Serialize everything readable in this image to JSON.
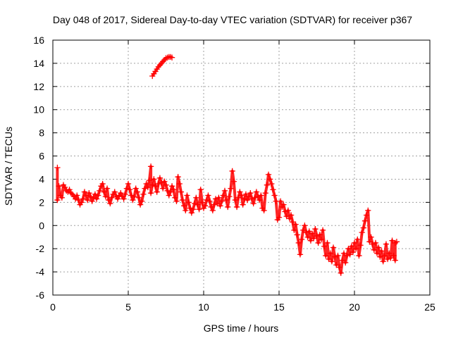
{
  "chart_data": {
    "type": "scatter",
    "title": "Day 048 of 2017, Sidereal Day-to-day VTEC variation (SDTVAR) for receiver p367",
    "xlabel": "GPS time / hours",
    "ylabel": "SDTVAR / TECUs",
    "xlim": [
      0,
      25
    ],
    "ylim": [
      -6,
      16
    ],
    "xticks": [
      "0",
      "5",
      "10",
      "15",
      "20",
      "25"
    ],
    "yticks": [
      "-6",
      "-4",
      "-2",
      "0",
      "2",
      "4",
      "6",
      "8",
      "10",
      "12",
      "14",
      "16"
    ],
    "grid": true,
    "marker": "+",
    "color": "#ff0000",
    "series": [
      {
        "name": "SDTVAR",
        "points": [
          [
            0.3,
            5.0
          ],
          [
            0.3,
            2.2
          ],
          [
            0.4,
            3.4
          ],
          [
            0.5,
            2.6
          ],
          [
            0.6,
            2.4
          ],
          [
            0.7,
            3.5
          ],
          [
            0.8,
            3.3
          ],
          [
            0.9,
            3.0
          ],
          [
            1.0,
            2.9
          ],
          [
            1.1,
            3.1
          ],
          [
            1.2,
            2.8
          ],
          [
            1.3,
            2.7
          ],
          [
            1.4,
            2.5
          ],
          [
            1.5,
            2.3
          ],
          [
            1.6,
            2.6
          ],
          [
            1.7,
            2.2
          ],
          [
            1.8,
            1.8
          ],
          [
            1.9,
            2.0
          ],
          [
            2.0,
            2.3
          ],
          [
            2.1,
            2.9
          ],
          [
            2.2,
            2.6
          ],
          [
            2.3,
            2.2
          ],
          [
            2.4,
            2.8
          ],
          [
            2.5,
            2.5
          ],
          [
            2.6,
            2.1
          ],
          [
            2.7,
            2.4
          ],
          [
            2.8,
            2.7
          ],
          [
            2.9,
            2.3
          ],
          [
            3.0,
            2.6
          ],
          [
            3.1,
            3.0
          ],
          [
            3.2,
            3.4
          ],
          [
            3.3,
            3.6
          ],
          [
            3.4,
            2.9
          ],
          [
            3.5,
            2.5
          ],
          [
            3.6,
            3.2
          ],
          [
            3.7,
            2.2
          ],
          [
            3.8,
            1.9
          ],
          [
            3.9,
            2.4
          ],
          [
            4.0,
            2.7
          ],
          [
            4.1,
            2.9
          ],
          [
            4.2,
            2.5
          ],
          [
            4.3,
            2.3
          ],
          [
            4.4,
            2.6
          ],
          [
            4.5,
            2.8
          ],
          [
            4.6,
            2.5
          ],
          [
            4.7,
            2.3
          ],
          [
            4.8,
            2.7
          ],
          [
            4.9,
            3.2
          ],
          [
            5.0,
            3.6
          ],
          [
            5.1,
            3.1
          ],
          [
            5.2,
            2.6
          ],
          [
            5.3,
            2.2
          ],
          [
            5.4,
            2.5
          ],
          [
            5.5,
            3.2
          ],
          [
            5.6,
            2.9
          ],
          [
            5.7,
            2.4
          ],
          [
            5.8,
            1.8
          ],
          [
            5.9,
            2.1
          ],
          [
            6.0,
            2.7
          ],
          [
            6.1,
            3.2
          ],
          [
            6.2,
            3.6
          ],
          [
            6.3,
            3.3
          ],
          [
            6.4,
            3.9
          ],
          [
            6.5,
            5.1
          ],
          [
            6.5,
            2.8
          ],
          [
            6.6,
            3.5
          ],
          [
            6.7,
            4.0
          ],
          [
            6.8,
            3.4
          ],
          [
            6.9,
            2.9
          ],
          [
            7.0,
            3.6
          ],
          [
            7.1,
            4.1
          ],
          [
            7.2,
            3.7
          ],
          [
            7.3,
            3.2
          ],
          [
            7.4,
            3.8
          ],
          [
            7.5,
            3.5
          ],
          [
            7.6,
            3.0
          ],
          [
            7.7,
            2.6
          ],
          [
            7.8,
            2.9
          ],
          [
            7.9,
            3.4
          ],
          [
            8.0,
            3.1
          ],
          [
            8.1,
            2.4
          ],
          [
            8.2,
            2.1
          ],
          [
            8.3,
            4.2
          ],
          [
            8.4,
            3.6
          ],
          [
            8.5,
            2.9
          ],
          [
            8.6,
            2.2
          ],
          [
            8.7,
            1.7
          ],
          [
            8.8,
            1.3
          ],
          [
            8.9,
            2.6
          ],
          [
            9.0,
            2.0
          ],
          [
            9.1,
            1.5
          ],
          [
            9.2,
            1.1
          ],
          [
            9.3,
            1.4
          ],
          [
            9.4,
            1.9
          ],
          [
            9.5,
            2.4
          ],
          [
            9.6,
            1.8
          ],
          [
            9.7,
            1.4
          ],
          [
            9.8,
            3.1
          ],
          [
            9.9,
            2.0
          ],
          [
            10.0,
            1.5
          ],
          [
            10.1,
            1.7
          ],
          [
            10.2,
            2.2
          ],
          [
            10.3,
            2.6
          ],
          [
            10.4,
            2.1
          ],
          [
            10.5,
            1.6
          ],
          [
            10.6,
            1.3
          ],
          [
            10.7,
            1.8
          ],
          [
            10.8,
            2.3
          ],
          [
            10.9,
            1.9
          ],
          [
            11.0,
            2.4
          ],
          [
            11.1,
            1.7
          ],
          [
            11.2,
            2.1
          ],
          [
            11.3,
            2.6
          ],
          [
            11.4,
            3.0
          ],
          [
            11.5,
            2.2
          ],
          [
            11.6,
            1.6
          ],
          [
            11.7,
            2.5
          ],
          [
            11.8,
            3.2
          ],
          [
            11.9,
            4.7
          ],
          [
            12.0,
            3.8
          ],
          [
            12.1,
            2.2
          ],
          [
            12.2,
            1.6
          ],
          [
            12.3,
            2.4
          ],
          [
            12.4,
            2.9
          ],
          [
            12.5,
            2.6
          ],
          [
            12.6,
            1.8
          ],
          [
            12.7,
            2.3
          ],
          [
            12.8,
            2.7
          ],
          [
            12.9,
            2.2
          ],
          [
            13.0,
            2.5
          ],
          [
            13.1,
            2.8
          ],
          [
            13.2,
            2.3
          ],
          [
            13.3,
            1.9
          ],
          [
            13.4,
            2.4
          ],
          [
            13.5,
            2.9
          ],
          [
            13.6,
            2.5
          ],
          [
            13.7,
            2.2
          ],
          [
            13.8,
            2.6
          ],
          [
            13.9,
            1.5
          ],
          [
            14.0,
            1.3
          ],
          [
            14.1,
            2.8
          ],
          [
            14.2,
            3.5
          ],
          [
            14.3,
            4.4
          ],
          [
            14.4,
            4.0
          ],
          [
            14.5,
            3.6
          ],
          [
            14.6,
            3.1
          ],
          [
            14.7,
            2.6
          ],
          [
            14.8,
            2.1
          ],
          [
            14.9,
            0.5
          ],
          [
            15.0,
            0.7
          ],
          [
            15.1,
            2.1
          ],
          [
            15.2,
            1.6
          ],
          [
            15.3,
            1.8
          ],
          [
            15.4,
            1.2
          ],
          [
            15.5,
            0.8
          ],
          [
            15.6,
            1.3
          ],
          [
            15.7,
            0.6
          ],
          [
            15.8,
            0.9
          ],
          [
            15.9,
            0.3
          ],
          [
            16.0,
            -0.4
          ],
          [
            16.1,
            0.1
          ],
          [
            16.2,
            -0.8
          ],
          [
            16.3,
            -1.5
          ],
          [
            16.4,
            -2.5
          ],
          [
            16.5,
            -1.2
          ],
          [
            16.6,
            -0.4
          ],
          [
            16.7,
            0.0
          ],
          [
            16.8,
            -0.6
          ],
          [
            16.9,
            -1.0
          ],
          [
            17.0,
            -0.5
          ],
          [
            17.1,
            -1.3
          ],
          [
            17.2,
            -0.7
          ],
          [
            17.3,
            -1.1
          ],
          [
            17.4,
            -0.3
          ],
          [
            17.5,
            -0.9
          ],
          [
            17.6,
            -1.5
          ],
          [
            17.7,
            -0.8
          ],
          [
            17.8,
            -1.2
          ],
          [
            17.9,
            -0.4
          ],
          [
            18.0,
            -1.8
          ],
          [
            18.1,
            -2.6
          ],
          [
            18.2,
            -1.5
          ],
          [
            18.3,
            -2.9
          ],
          [
            18.4,
            -2.4
          ],
          [
            18.5,
            -3.1
          ],
          [
            18.6,
            -1.9
          ],
          [
            18.7,
            -2.7
          ],
          [
            18.8,
            -3.4
          ],
          [
            18.9,
            -2.6
          ],
          [
            19.0,
            -3.6
          ],
          [
            19.1,
            -4.1
          ],
          [
            19.2,
            -3.0
          ],
          [
            19.3,
            -2.4
          ],
          [
            19.4,
            -3.2
          ],
          [
            19.5,
            -2.6
          ],
          [
            19.6,
            -2.0
          ],
          [
            19.7,
            -2.5
          ],
          [
            19.8,
            -1.8
          ],
          [
            19.9,
            -2.3
          ],
          [
            20.0,
            -1.5
          ],
          [
            20.1,
            -2.0
          ],
          [
            20.2,
            -1.2
          ],
          [
            20.3,
            -2.6
          ],
          [
            20.4,
            -1.7
          ],
          [
            20.5,
            -0.6
          ],
          [
            20.6,
            -0.2
          ],
          [
            20.7,
            0.4
          ],
          [
            20.8,
            0.9
          ],
          [
            20.9,
            1.3
          ],
          [
            21.0,
            -1.4
          ],
          [
            21.1,
            -1.0
          ],
          [
            21.2,
            -1.6
          ],
          [
            21.3,
            -2.1
          ],
          [
            21.4,
            -1.5
          ],
          [
            21.5,
            -2.4
          ],
          [
            21.6,
            -1.9
          ],
          [
            21.7,
            -2.7
          ],
          [
            21.8,
            -2.2
          ],
          [
            21.9,
            -3.1
          ],
          [
            22.0,
            -2.6
          ],
          [
            22.1,
            -1.6
          ],
          [
            22.2,
            -2.9
          ],
          [
            22.3,
            -2.4
          ],
          [
            22.4,
            -2.8
          ],
          [
            22.5,
            -1.3
          ],
          [
            22.6,
            -2.6
          ],
          [
            22.7,
            -3.0
          ],
          [
            22.7,
            -1.5
          ],
          [
            22.8,
            -1.4
          ]
        ]
      },
      {
        "name": "SDTVAR-upper-arc",
        "points": [
          [
            6.6,
            12.9
          ],
          [
            6.7,
            13.1
          ],
          [
            6.8,
            13.3
          ],
          [
            6.9,
            13.5
          ],
          [
            7.0,
            13.7
          ],
          [
            7.1,
            13.85
          ],
          [
            7.2,
            14.0
          ],
          [
            7.3,
            14.15
          ],
          [
            7.4,
            14.3
          ],
          [
            7.5,
            14.45
          ],
          [
            7.6,
            14.5
          ],
          [
            7.7,
            14.55
          ],
          [
            7.8,
            14.55
          ],
          [
            7.9,
            14.5
          ]
        ]
      }
    ]
  }
}
